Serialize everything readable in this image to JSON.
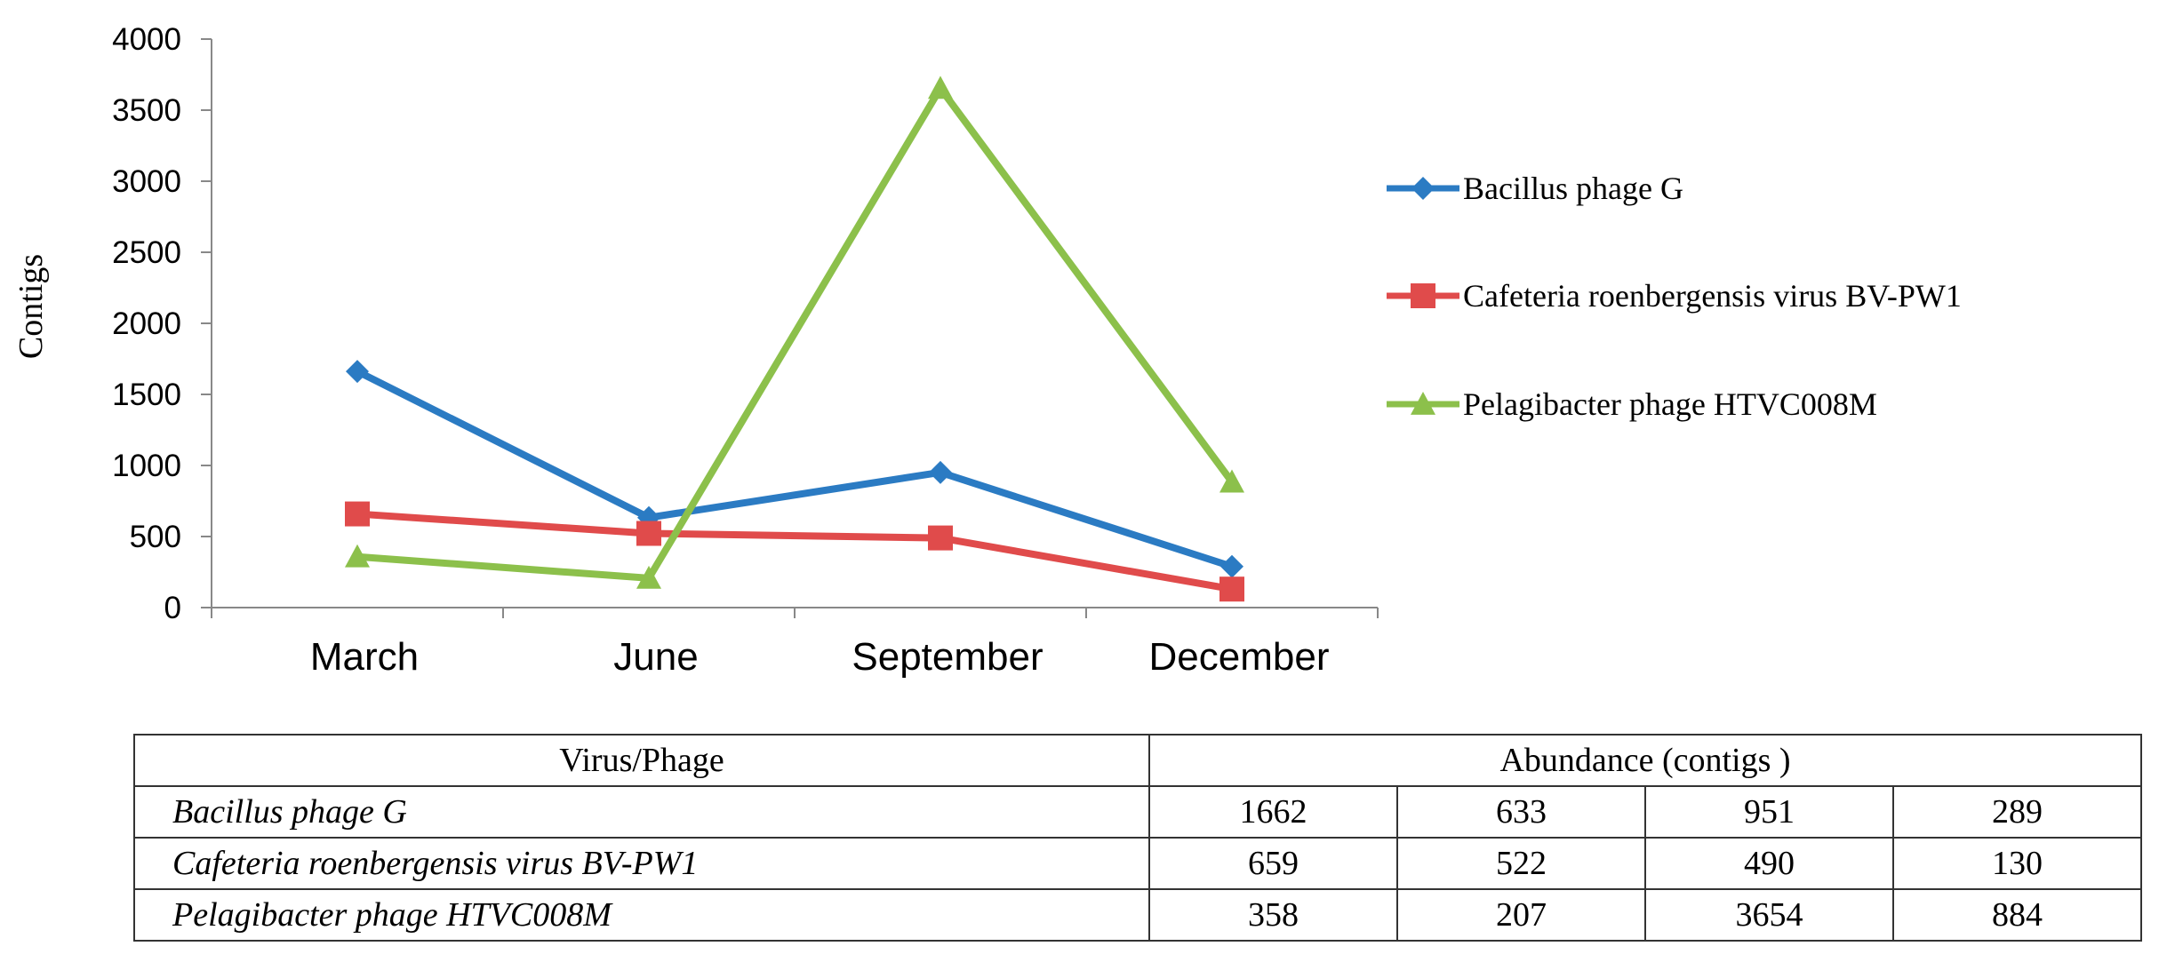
{
  "chart_data": {
    "type": "line",
    "categories": [
      "March",
      "June",
      "September",
      "December"
    ],
    "ylabel": "Contigs",
    "xlabel": "",
    "ylim": [
      0,
      4000
    ],
    "yticks": [
      0,
      500,
      1000,
      1500,
      2000,
      2500,
      3000,
      3500,
      4000
    ],
    "grid": false,
    "legend_position": "right",
    "series": [
      {
        "name": "Bacillus phage G",
        "color": "#2b7bc3",
        "marker": "diamond",
        "values": [
          1662,
          633,
          951,
          289
        ]
      },
      {
        "name": "Cafeteria roenbergensis virus BV-PW1",
        "color": "#e04b4b",
        "marker": "square",
        "values": [
          659,
          522,
          490,
          130
        ]
      },
      {
        "name": "Pelagibacter phage HTVC008M",
        "color": "#8cc04b",
        "marker": "triangle",
        "values": [
          358,
          207,
          3654,
          884
        ]
      }
    ]
  },
  "table": {
    "header_name": "Virus/Phage",
    "header_value": "Abundance (contigs )",
    "rows": [
      {
        "name": "Bacillus phage G",
        "values": [
          "1662",
          "633",
          "951",
          "289"
        ]
      },
      {
        "name": "Cafeteria roenbergensis virus BV-PW1",
        "values": [
          "659",
          "522",
          "490",
          "130"
        ]
      },
      {
        "name": "Pelagibacter phage HTVC008M",
        "values": [
          "358",
          "207",
          "3654",
          "884"
        ]
      }
    ]
  }
}
